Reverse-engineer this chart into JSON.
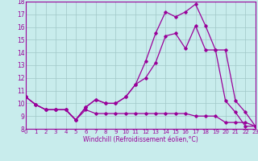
{
  "xlabel": "Windchill (Refroidissement éolien,°C)",
  "xlim": [
    0,
    23
  ],
  "ylim": [
    8,
    18
  ],
  "yticks": [
    8,
    9,
    10,
    11,
    12,
    13,
    14,
    15,
    16,
    17,
    18
  ],
  "xticks": [
    0,
    1,
    2,
    3,
    4,
    5,
    6,
    7,
    8,
    9,
    10,
    11,
    12,
    13,
    14,
    15,
    16,
    17,
    18,
    19,
    20,
    21,
    22,
    23
  ],
  "bg_color": "#c8ecec",
  "grid_color": "#a0c8c8",
  "line_color": "#990099",
  "line1_x": [
    0,
    1,
    2,
    3,
    4,
    5,
    6,
    7,
    8,
    9,
    10,
    11,
    12,
    13,
    14,
    15,
    16,
    17,
    18,
    19,
    20,
    21,
    22,
    23
  ],
  "line1_y": [
    10.5,
    9.9,
    9.5,
    9.5,
    9.5,
    8.7,
    9.7,
    10.3,
    10.0,
    10.0,
    10.5,
    11.5,
    12.0,
    13.2,
    15.3,
    15.5,
    14.3,
    16.1,
    14.2,
    14.2,
    10.2,
    9.3,
    8.2,
    8.2
  ],
  "line2_x": [
    0,
    1,
    2,
    3,
    4,
    5,
    6,
    7,
    8,
    9,
    10,
    11,
    12,
    13,
    14,
    15,
    16,
    17,
    18,
    19,
    20,
    21,
    22,
    23
  ],
  "line2_y": [
    10.5,
    9.9,
    9.5,
    9.5,
    9.5,
    8.7,
    9.7,
    10.3,
    10.0,
    10.0,
    10.5,
    11.5,
    13.3,
    15.5,
    17.2,
    16.8,
    17.2,
    17.8,
    16.1,
    14.2,
    14.2,
    10.2,
    9.3,
    8.2
  ],
  "line3_x": [
    0,
    1,
    2,
    3,
    4,
    5,
    6,
    7,
    8,
    9,
    10,
    11,
    12,
    13,
    14,
    15,
    16,
    17,
    18,
    19,
    20,
    21,
    22,
    23
  ],
  "line3_y": [
    10.5,
    9.9,
    9.5,
    9.5,
    9.5,
    8.7,
    9.5,
    9.2,
    9.2,
    9.2,
    9.2,
    9.2,
    9.2,
    9.2,
    9.2,
    9.2,
    9.2,
    9.0,
    9.0,
    9.0,
    8.5,
    8.5,
    8.5,
    8.2
  ]
}
